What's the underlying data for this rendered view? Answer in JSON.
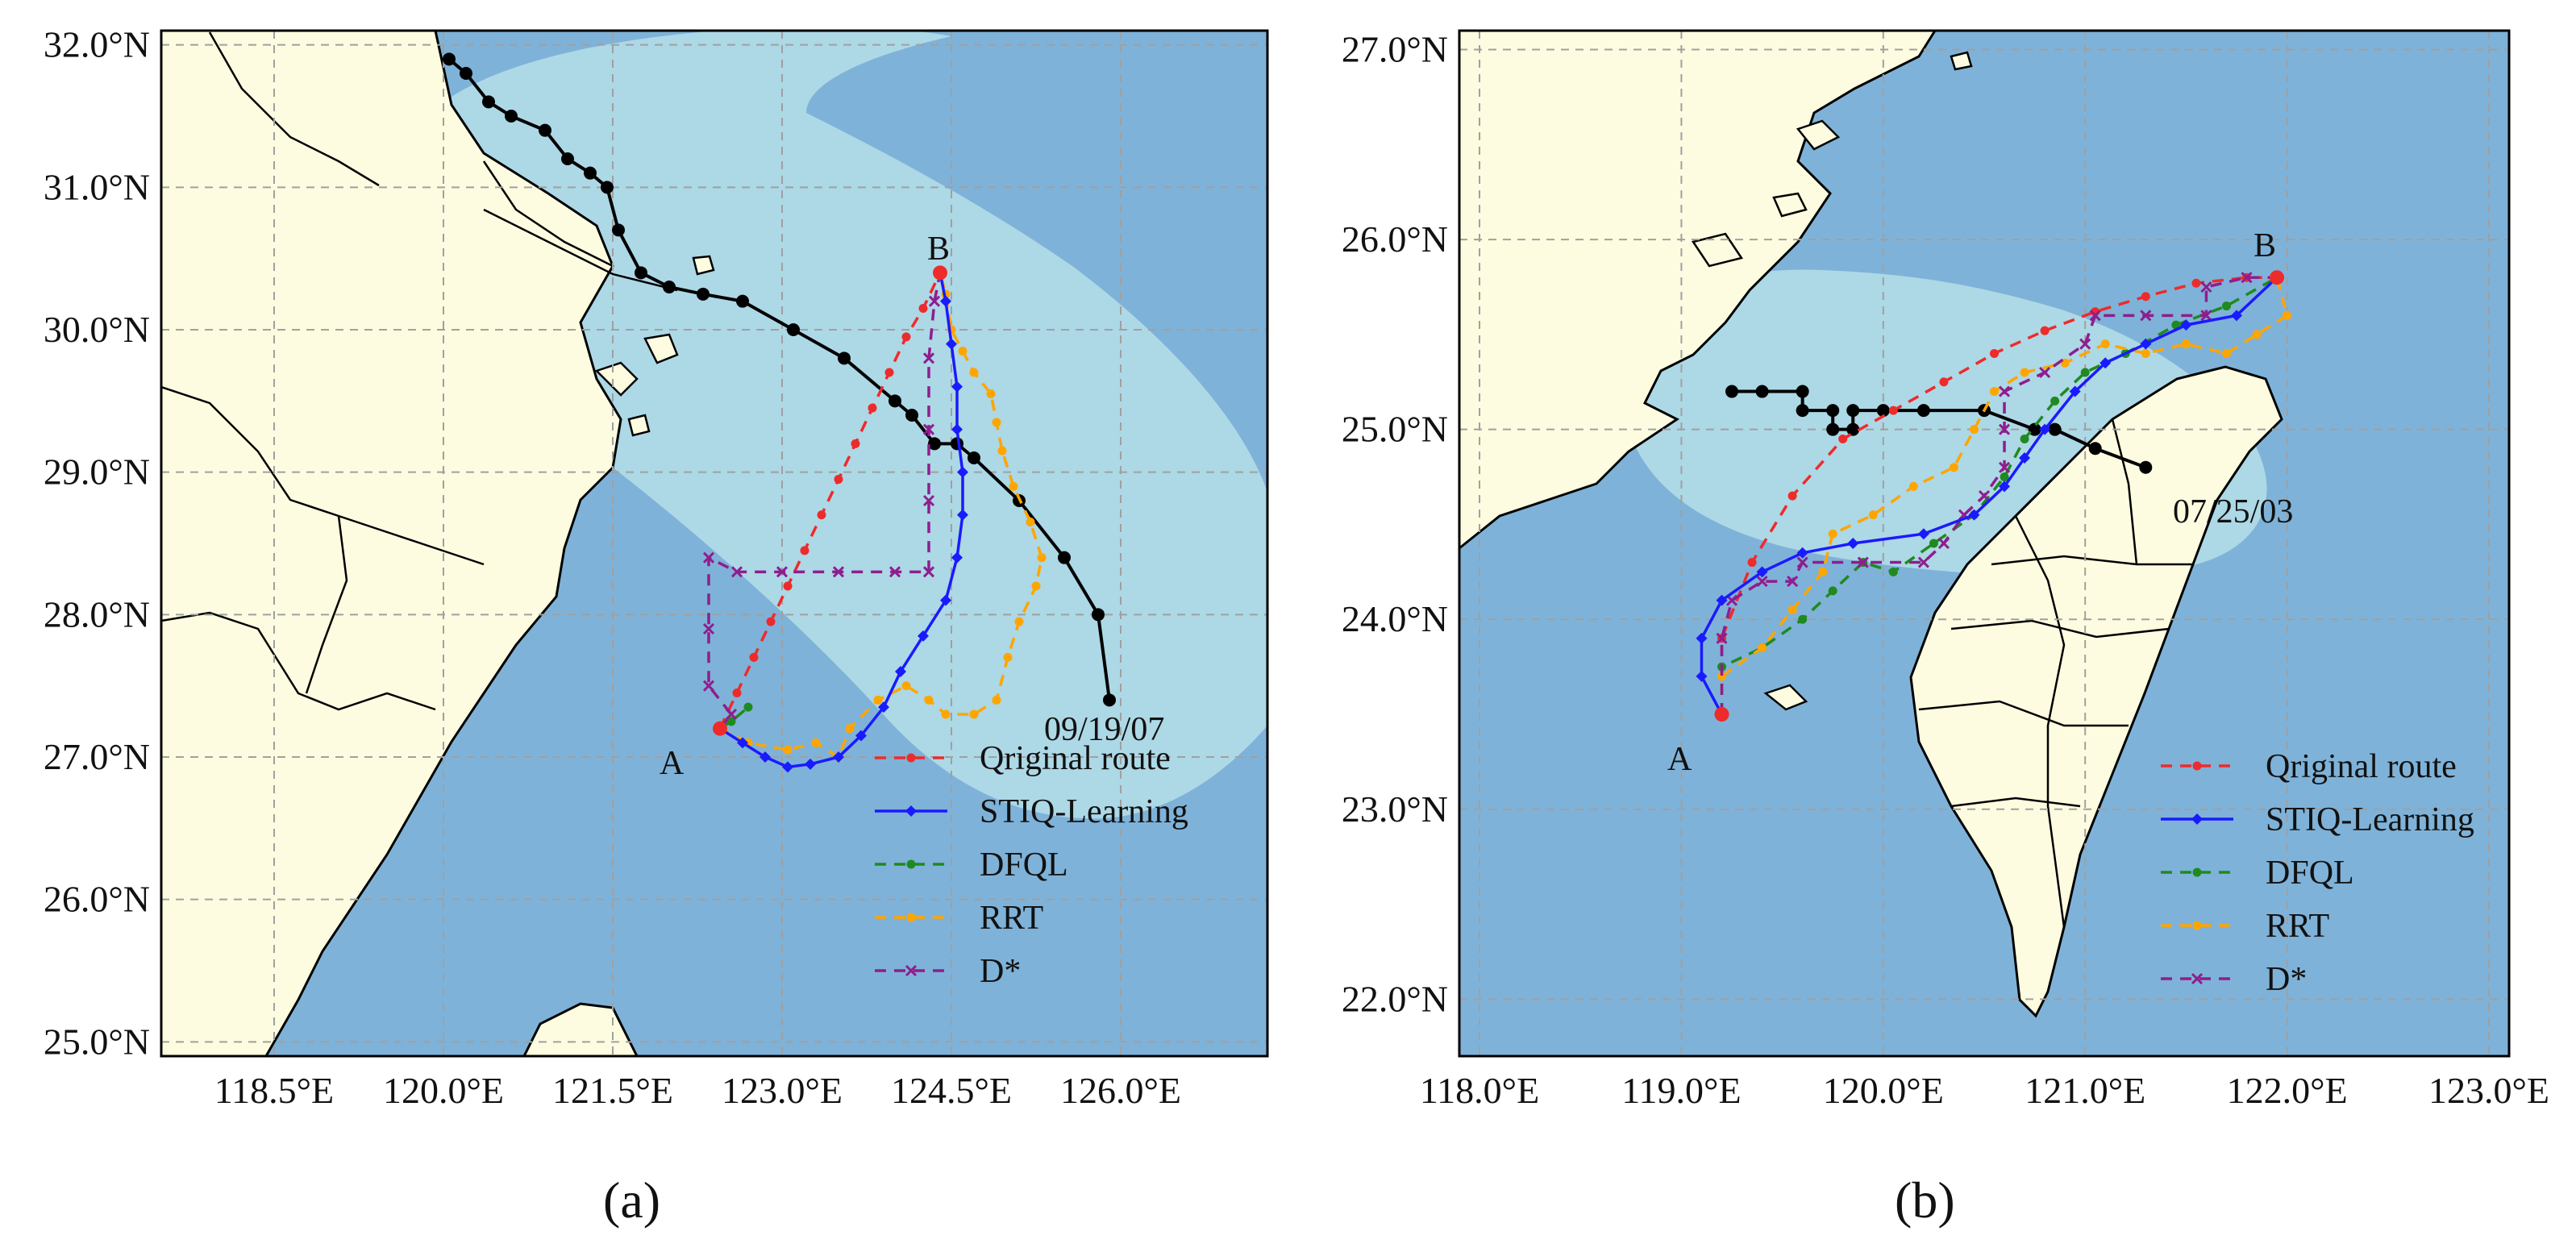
{
  "colors": {
    "land": "#fefce0",
    "sea": "#7fb2d8",
    "zone": "#add8e6",
    "grid": "#a0a0a0",
    "coast": "#000000",
    "original": "#ee2b2b",
    "stiq": "#1a1aff",
    "dfql": "#1f8a1f",
    "rrt": "#ffa500",
    "dstar": "#8e1e8e",
    "typhoon": "#000000"
  },
  "legend_labels": {
    "original": "Qriginal route",
    "stiq": "STIQ-Learning",
    "dfql": "DFQL",
    "rrt": "RRT",
    "dstar": "D*"
  },
  "panels": [
    {
      "caption": "(a)",
      "start_label": "A",
      "end_label": "B",
      "typhoon_time": "09/19/07",
      "extent": {
        "lon": [
          117.5,
          127.3
        ],
        "lat": [
          24.9,
          32.1
        ]
      },
      "xticks": [
        {
          "v": 118.5,
          "label": "118.5°E"
        },
        {
          "v": 120.0,
          "label": "120.0°E"
        },
        {
          "v": 121.5,
          "label": "121.5°E"
        },
        {
          "v": 123.0,
          "label": "123.0°E"
        },
        {
          "v": 124.5,
          "label": "124.5°E"
        },
        {
          "v": 126.0,
          "label": "126.0°E"
        }
      ],
      "yticks": [
        {
          "v": 25.0,
          "label": "25.0°N"
        },
        {
          "v": 26.0,
          "label": "26.0°N"
        },
        {
          "v": 27.0,
          "label": "27.0°N"
        },
        {
          "v": 28.0,
          "label": "28.0°N"
        },
        {
          "v": 29.0,
          "label": "29.0°N"
        },
        {
          "v": 30.0,
          "label": "30.0°N"
        },
        {
          "v": 31.0,
          "label": "31.0°N"
        },
        {
          "v": 32.0,
          "label": "32.0°N"
        }
      ],
      "start": [
        122.45,
        27.2
      ],
      "end": [
        124.4,
        30.4
      ],
      "typhoon_track": [
        [
          120.05,
          31.9
        ],
        [
          120.2,
          31.8
        ],
        [
          120.4,
          31.6
        ],
        [
          120.6,
          31.5
        ],
        [
          120.9,
          31.4
        ],
        [
          121.1,
          31.2
        ],
        [
          121.3,
          31.1
        ],
        [
          121.45,
          31.0
        ],
        [
          121.55,
          30.7
        ],
        [
          121.75,
          30.4
        ],
        [
          122.0,
          30.3
        ],
        [
          122.3,
          30.25
        ],
        [
          122.65,
          30.2
        ],
        [
          123.1,
          30.0
        ],
        [
          123.55,
          29.8
        ],
        [
          124.0,
          29.5
        ],
        [
          124.15,
          29.4
        ],
        [
          124.35,
          29.2
        ],
        [
          124.55,
          29.2
        ],
        [
          124.7,
          29.1
        ],
        [
          125.1,
          28.8
        ],
        [
          125.5,
          28.4
        ],
        [
          125.8,
          28.0
        ],
        [
          125.9,
          27.4
        ]
      ],
      "routes": {
        "original": [
          [
            122.45,
            27.2
          ],
          [
            122.6,
            27.45
          ],
          [
            122.75,
            27.7
          ],
          [
            122.9,
            27.95
          ],
          [
            123.05,
            28.2
          ],
          [
            123.2,
            28.45
          ],
          [
            123.35,
            28.7
          ],
          [
            123.5,
            28.95
          ],
          [
            123.65,
            29.2
          ],
          [
            123.8,
            29.45
          ],
          [
            123.95,
            29.7
          ],
          [
            124.1,
            29.95
          ],
          [
            124.25,
            30.15
          ],
          [
            124.4,
            30.4
          ]
        ],
        "stiq": [
          [
            122.45,
            27.2
          ],
          [
            122.65,
            27.1
          ],
          [
            122.85,
            27.0
          ],
          [
            123.05,
            26.93
          ],
          [
            123.25,
            26.95
          ],
          [
            123.5,
            27.0
          ],
          [
            123.7,
            27.15
          ],
          [
            123.9,
            27.35
          ],
          [
            124.05,
            27.6
          ],
          [
            124.25,
            27.85
          ],
          [
            124.45,
            28.1
          ],
          [
            124.55,
            28.4
          ],
          [
            124.6,
            28.7
          ],
          [
            124.6,
            29.0
          ],
          [
            124.55,
            29.3
          ],
          [
            124.55,
            29.6
          ],
          [
            124.5,
            29.9
          ],
          [
            124.45,
            30.2
          ],
          [
            124.4,
            30.4
          ]
        ],
        "dfql": [
          [
            122.45,
            27.2
          ],
          [
            122.55,
            27.25
          ],
          [
            122.7,
            27.35
          ]
        ],
        "rrt": [
          [
            122.45,
            27.2
          ],
          [
            122.7,
            27.1
          ],
          [
            123.05,
            27.05
          ],
          [
            123.3,
            27.1
          ],
          [
            123.5,
            27.0
          ],
          [
            123.6,
            27.2
          ],
          [
            123.85,
            27.4
          ],
          [
            124.1,
            27.5
          ],
          [
            124.3,
            27.4
          ],
          [
            124.45,
            27.3
          ],
          [
            124.7,
            27.3
          ],
          [
            124.9,
            27.4
          ],
          [
            125.0,
            27.7
          ],
          [
            125.1,
            27.95
          ],
          [
            125.25,
            28.2
          ],
          [
            125.3,
            28.4
          ],
          [
            125.2,
            28.65
          ],
          [
            125.05,
            28.9
          ],
          [
            124.95,
            29.15
          ],
          [
            124.9,
            29.35
          ],
          [
            124.85,
            29.55
          ],
          [
            124.7,
            29.7
          ],
          [
            124.6,
            29.85
          ],
          [
            124.5,
            30.0
          ],
          [
            124.45,
            30.25
          ],
          [
            124.4,
            30.4
          ]
        ],
        "dstar": [
          [
            122.45,
            27.2
          ],
          [
            122.55,
            27.3
          ],
          [
            122.35,
            27.5
          ],
          [
            122.35,
            27.9
          ],
          [
            122.35,
            28.4
          ],
          [
            122.6,
            28.3
          ],
          [
            123.0,
            28.3
          ],
          [
            123.5,
            28.3
          ],
          [
            124.0,
            28.3
          ],
          [
            124.3,
            28.3
          ],
          [
            124.3,
            28.8
          ],
          [
            124.3,
            29.3
          ],
          [
            124.3,
            29.8
          ],
          [
            124.35,
            30.2
          ],
          [
            124.4,
            30.4
          ]
        ]
      }
    },
    {
      "caption": "(b)",
      "start_label": "A",
      "end_label": "B",
      "typhoon_time": "07/25/03",
      "extent": {
        "lon": [
          117.9,
          123.1
        ],
        "lat": [
          21.7,
          27.1
        ]
      },
      "xticks": [
        {
          "v": 118.0,
          "label": "118.0°E"
        },
        {
          "v": 119.0,
          "label": "119.0°E"
        },
        {
          "v": 120.0,
          "label": "120.0°E"
        },
        {
          "v": 121.0,
          "label": "121.0°E"
        },
        {
          "v": 122.0,
          "label": "122.0°E"
        },
        {
          "v": 123.0,
          "label": "123.0°E"
        }
      ],
      "yticks": [
        {
          "v": 22.0,
          "label": "22.0°N"
        },
        {
          "v": 23.0,
          "label": "23.0°N"
        },
        {
          "v": 24.0,
          "label": "24.0°N"
        },
        {
          "v": 25.0,
          "label": "25.0°N"
        },
        {
          "v": 26.0,
          "label": "26.0°N"
        },
        {
          "v": 27.0,
          "label": "27.0°N"
        }
      ],
      "start": [
        119.2,
        23.5
      ],
      "end": [
        121.95,
        25.8
      ],
      "typhoon_track": [
        [
          119.25,
          25.2
        ],
        [
          119.4,
          25.2
        ],
        [
          119.6,
          25.2
        ],
        [
          119.6,
          25.1
        ],
        [
          119.75,
          25.1
        ],
        [
          119.75,
          25.0
        ],
        [
          119.85,
          25.0
        ],
        [
          119.85,
          25.1
        ],
        [
          120.0,
          25.1
        ],
        [
          120.2,
          25.1
        ],
        [
          120.5,
          25.1
        ],
        [
          120.75,
          25.0
        ],
        [
          120.85,
          25.0
        ],
        [
          121.05,
          24.9
        ],
        [
          121.3,
          24.8
        ]
      ],
      "routes": {
        "original": [
          [
            119.2,
            23.5
          ],
          [
            119.2,
            23.9
          ],
          [
            119.35,
            24.3
          ],
          [
            119.55,
            24.65
          ],
          [
            119.8,
            24.95
          ],
          [
            120.05,
            25.1
          ],
          [
            120.3,
            25.25
          ],
          [
            120.55,
            25.4
          ],
          [
            120.8,
            25.52
          ],
          [
            121.05,
            25.62
          ],
          [
            121.3,
            25.7
          ],
          [
            121.55,
            25.77
          ],
          [
            121.8,
            25.8
          ],
          [
            121.95,
            25.8
          ]
        ],
        "stiq": [
          [
            119.2,
            23.5
          ],
          [
            119.1,
            23.7
          ],
          [
            119.1,
            23.9
          ],
          [
            119.2,
            24.1
          ],
          [
            119.4,
            24.25
          ],
          [
            119.6,
            24.35
          ],
          [
            119.85,
            24.4
          ],
          [
            120.2,
            24.45
          ],
          [
            120.45,
            24.55
          ],
          [
            120.6,
            24.7
          ],
          [
            120.7,
            24.85
          ],
          [
            120.8,
            25.0
          ],
          [
            120.95,
            25.2
          ],
          [
            121.1,
            25.35
          ],
          [
            121.3,
            25.45
          ],
          [
            121.5,
            25.55
          ],
          [
            121.75,
            25.6
          ],
          [
            121.95,
            25.8
          ]
        ],
        "dfql": [
          [
            119.2,
            23.5
          ],
          [
            119.2,
            23.75
          ],
          [
            119.4,
            23.85
          ],
          [
            119.6,
            24.0
          ],
          [
            119.75,
            24.15
          ],
          [
            119.9,
            24.3
          ],
          [
            120.05,
            24.25
          ],
          [
            120.25,
            24.4
          ],
          [
            120.45,
            24.55
          ],
          [
            120.6,
            24.75
          ],
          [
            120.7,
            24.95
          ],
          [
            120.85,
            25.15
          ],
          [
            121.0,
            25.3
          ],
          [
            121.2,
            25.4
          ],
          [
            121.45,
            25.55
          ],
          [
            121.7,
            25.65
          ],
          [
            121.95,
            25.8
          ]
        ],
        "rrt": [
          [
            119.2,
            23.5
          ],
          [
            119.2,
            23.7
          ],
          [
            119.4,
            23.85
          ],
          [
            119.55,
            24.05
          ],
          [
            119.7,
            24.25
          ],
          [
            119.75,
            24.45
          ],
          [
            119.95,
            24.55
          ],
          [
            120.15,
            24.7
          ],
          [
            120.35,
            24.8
          ],
          [
            120.45,
            25.0
          ],
          [
            120.55,
            25.2
          ],
          [
            120.7,
            25.3
          ],
          [
            120.9,
            25.35
          ],
          [
            121.1,
            25.45
          ],
          [
            121.3,
            25.4
          ],
          [
            121.5,
            25.45
          ],
          [
            121.7,
            25.4
          ],
          [
            121.85,
            25.5
          ],
          [
            122.0,
            25.6
          ],
          [
            121.95,
            25.8
          ]
        ],
        "dstar": [
          [
            119.2,
            23.5
          ],
          [
            119.2,
            23.9
          ],
          [
            119.25,
            24.1
          ],
          [
            119.4,
            24.2
          ],
          [
            119.55,
            24.2
          ],
          [
            119.6,
            24.3
          ],
          [
            119.9,
            24.3
          ],
          [
            120.2,
            24.3
          ],
          [
            120.3,
            24.4
          ],
          [
            120.4,
            24.55
          ],
          [
            120.5,
            24.65
          ],
          [
            120.6,
            24.8
          ],
          [
            120.6,
            25.0
          ],
          [
            120.6,
            25.2
          ],
          [
            120.8,
            25.3
          ],
          [
            121.0,
            25.45
          ],
          [
            121.05,
            25.6
          ],
          [
            121.3,
            25.6
          ],
          [
            121.6,
            25.6
          ],
          [
            121.6,
            25.75
          ],
          [
            121.8,
            25.8
          ],
          [
            121.95,
            25.8
          ]
        ]
      }
    }
  ]
}
